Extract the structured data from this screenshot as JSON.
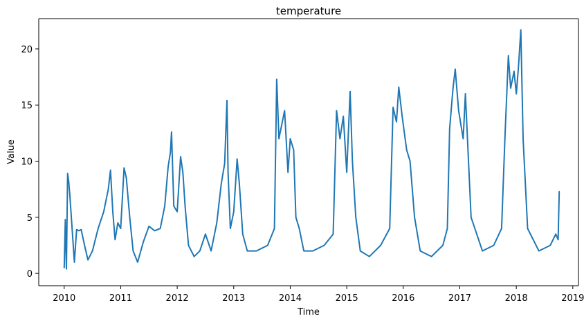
{
  "chart_data": {
    "type": "line",
    "title": "temperature",
    "xlabel": "Time",
    "ylabel": "Value",
    "xlim": [
      2009.55,
      2019.1
    ],
    "ylim": [
      -1.1,
      22.7
    ],
    "xticks": [
      2010,
      2011,
      2012,
      2013,
      2014,
      2015,
      2016,
      2017,
      2018,
      2019
    ],
    "xtick_labels": [
      "2010",
      "2011",
      "2012",
      "2013",
      "2014",
      "2015",
      "2016",
      "2017",
      "2018",
      "2019"
    ],
    "yticks": [
      0,
      5,
      10,
      15,
      20
    ],
    "ytick_labels": [
      "0",
      "5",
      "10",
      "15",
      "20"
    ],
    "grid": false,
    "color": "#1f77b4",
    "series": [
      {
        "name": "temperature",
        "x": [
          2010.0,
          2010.02,
          2010.04,
          2010.06,
          2010.08,
          2010.1,
          2010.14,
          2010.18,
          2010.22,
          2010.26,
          2010.3,
          2010.36,
          2010.42,
          2010.5,
          2010.6,
          2010.7,
          2010.78,
          2010.82,
          2010.86,
          2010.9,
          2010.95,
          2011.0,
          2011.06,
          2011.1,
          2011.16,
          2011.22,
          2011.3,
          2011.4,
          2011.5,
          2011.6,
          2011.7,
          2011.78,
          2011.84,
          2011.88,
          2011.9,
          2011.94,
          2012.0,
          2012.06,
          2012.1,
          2012.14,
          2012.2,
          2012.3,
          2012.4,
          2012.5,
          2012.6,
          2012.7,
          2012.78,
          2012.84,
          2012.88,
          2012.9,
          2012.94,
          2013.0,
          2013.06,
          2013.1,
          2013.16,
          2013.24,
          2013.4,
          2013.6,
          2013.72,
          2013.76,
          2013.8,
          2013.86,
          2013.9,
          2013.96,
          2014.0,
          2014.06,
          2014.1,
          2014.16,
          2014.24,
          2014.4,
          2014.6,
          2014.76,
          2014.82,
          2014.88,
          2014.94,
          2015.0,
          2015.06,
          2015.1,
          2015.16,
          2015.24,
          2015.4,
          2015.6,
          2015.76,
          2015.82,
          2015.88,
          2015.92,
          2015.98,
          2016.06,
          2016.12,
          2016.2,
          2016.3,
          2016.5,
          2016.7,
          2016.78,
          2016.82,
          2016.88,
          2016.92,
          2016.98,
          2017.06,
          2017.1,
          2017.2,
          2017.4,
          2017.6,
          2017.74,
          2017.8,
          2017.86,
          2017.9,
          2017.96,
          2018.0,
          2018.04,
          2018.08,
          2018.12,
          2018.2,
          2018.4,
          2018.6,
          2018.7,
          2018.74,
          2018.76
        ],
        "values": [
          0.5,
          4.8,
          0.4,
          8.9,
          8.2,
          7.0,
          4.0,
          1.0,
          3.9,
          3.8,
          3.9,
          2.5,
          1.2,
          2.0,
          4.0,
          5.5,
          7.5,
          9.2,
          5.5,
          3.0,
          4.5,
          4.0,
          9.4,
          8.5,
          5.0,
          2.0,
          1.0,
          2.8,
          4.2,
          3.8,
          4.0,
          6.0,
          9.5,
          10.8,
          12.6,
          6.0,
          5.5,
          10.4,
          9.0,
          6.0,
          2.5,
          1.5,
          2.0,
          3.5,
          2.0,
          4.5,
          8.0,
          9.8,
          15.4,
          9.0,
          4.0,
          5.5,
          10.2,
          8.0,
          3.5,
          2.0,
          2.0,
          2.5,
          4.0,
          17.3,
          12.0,
          13.5,
          14.5,
          9.0,
          12.0,
          11.0,
          5.0,
          4.0,
          2.0,
          2.0,
          2.5,
          3.5,
          14.5,
          12.0,
          14.0,
          9.0,
          16.2,
          10.0,
          5.0,
          2.0,
          1.5,
          2.5,
          4.0,
          14.8,
          13.5,
          16.6,
          14.0,
          11.0,
          10.0,
          5.0,
          2.0,
          1.5,
          2.5,
          4.0,
          12.9,
          16.5,
          18.2,
          14.5,
          12.0,
          16.0,
          5.0,
          2.0,
          2.5,
          4.0,
          12.2,
          19.4,
          16.5,
          18.0,
          16.0,
          18.5,
          21.7,
          12.0,
          4.0,
          2.0,
          2.5,
          3.5,
          3.0,
          7.3
        ]
      }
    ]
  }
}
